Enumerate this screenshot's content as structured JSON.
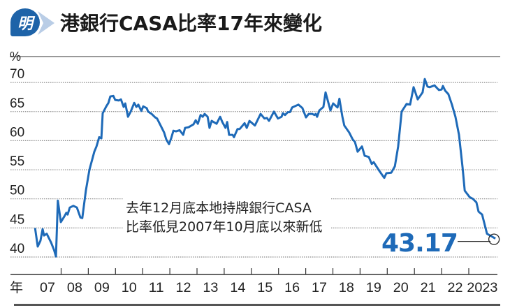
{
  "logo": {
    "text": "明",
    "color": "#1e63a8"
  },
  "title": "港銀行CASA比率17年來變化",
  "annotation": {
    "line1": "去年12月底本地持牌銀行CASA",
    "line2": "比率低見2007年10月底以來新低"
  },
  "latest_value": "43.17",
  "chart_data": {
    "type": "line",
    "title": "港銀行CASA比率17年來變化",
    "ylabel": "%",
    "xlabel": "年",
    "ylim": [
      40,
      70
    ],
    "xlim": [
      2007,
      2024
    ],
    "y_ticks": [
      "40",
      "45",
      "50",
      "55",
      "60",
      "65",
      "70"
    ],
    "x_tick_labels": [
      "07",
      "08",
      "09",
      "10",
      "11",
      "12",
      "13",
      "14",
      "15",
      "16",
      "17",
      "18",
      "19",
      "20",
      "21",
      "22",
      "2023"
    ],
    "grid": true,
    "line_color": "#1e6ab8",
    "series": [
      {
        "name": "CASA比率",
        "points": [
          [
            2007.04,
            45
          ],
          [
            2007.14,
            41.8
          ],
          [
            2007.24,
            42.8
          ],
          [
            2007.32,
            44.8
          ],
          [
            2007.37,
            43.7
          ],
          [
            2007.47,
            44
          ],
          [
            2007.63,
            42.5
          ],
          [
            2007.74,
            41.2
          ],
          [
            2007.81,
            40.1
          ],
          [
            2007.88,
            49.7
          ],
          [
            2007.99,
            46
          ],
          [
            2008.12,
            47
          ],
          [
            2008.19,
            47.6
          ],
          [
            2008.24,
            47.3
          ],
          [
            2008.32,
            48.5
          ],
          [
            2008.45,
            48.8
          ],
          [
            2008.58,
            48.5
          ],
          [
            2008.71,
            46.8
          ],
          [
            2008.78,
            46.7
          ],
          [
            2008.91,
            51.4
          ],
          [
            2009.04,
            55
          ],
          [
            2009.22,
            58.1
          ],
          [
            2009.3,
            59
          ],
          [
            2009.4,
            60.6
          ],
          [
            2009.48,
            60.4
          ],
          [
            2009.53,
            64.7
          ],
          [
            2009.66,
            65.9
          ],
          [
            2009.74,
            66.5
          ],
          [
            2009.81,
            67.6
          ],
          [
            2009.92,
            67.7
          ],
          [
            2009.99,
            67
          ],
          [
            2010.12,
            66.9
          ],
          [
            2010.2,
            67.1
          ],
          [
            2010.3,
            65.8
          ],
          [
            2010.36,
            66.4
          ],
          [
            2010.46,
            64.1
          ],
          [
            2010.56,
            65
          ],
          [
            2010.69,
            66.5
          ],
          [
            2010.77,
            65.8
          ],
          [
            2010.84,
            66.2
          ],
          [
            2010.95,
            65.1
          ],
          [
            2011.02,
            65.9
          ],
          [
            2011.15,
            65.6
          ],
          [
            2011.2,
            65
          ],
          [
            2011.33,
            64.6
          ],
          [
            2011.46,
            64
          ],
          [
            2011.53,
            63.8
          ],
          [
            2011.66,
            62.6
          ],
          [
            2011.79,
            61.4
          ],
          [
            2011.87,
            60.2
          ],
          [
            2011.97,
            59.4
          ],
          [
            2012.05,
            60.4
          ],
          [
            2012.13,
            61.7
          ],
          [
            2012.23,
            61.6
          ],
          [
            2012.36,
            61.8
          ],
          [
            2012.49,
            61
          ],
          [
            2012.56,
            62.2
          ],
          [
            2012.69,
            62.3
          ],
          [
            2012.87,
            62.8
          ],
          [
            2012.95,
            63.5
          ],
          [
            2013.03,
            62.9
          ],
          [
            2013.13,
            64.4
          ],
          [
            2013.21,
            64.1
          ],
          [
            2013.28,
            64.6
          ],
          [
            2013.39,
            64.1
          ],
          [
            2013.46,
            62.2
          ],
          [
            2013.54,
            63.4
          ],
          [
            2013.72,
            62.9
          ],
          [
            2013.85,
            64.1
          ],
          [
            2013.93,
            63.2
          ],
          [
            2014.05,
            62.2
          ],
          [
            2014.11,
            63.2
          ],
          [
            2014.18,
            61
          ],
          [
            2014.31,
            61
          ],
          [
            2014.36,
            60.6
          ],
          [
            2014.49,
            62
          ],
          [
            2014.57,
            62
          ],
          [
            2014.75,
            63
          ],
          [
            2014.83,
            62.2
          ],
          [
            2014.93,
            63.4
          ],
          [
            2015.13,
            62.6
          ],
          [
            2015.34,
            64.6
          ],
          [
            2015.48,
            63.8
          ],
          [
            2015.57,
            63.9
          ],
          [
            2015.65,
            63.4
          ],
          [
            2015.83,
            65
          ],
          [
            2015.98,
            63.8
          ],
          [
            2016.11,
            64.1
          ],
          [
            2016.16,
            64.7
          ],
          [
            2016.24,
            64.4
          ],
          [
            2016.34,
            64.9
          ],
          [
            2016.42,
            64.9
          ],
          [
            2016.5,
            65.7
          ],
          [
            2016.73,
            66.2
          ],
          [
            2016.88,
            65.6
          ],
          [
            2017.01,
            64
          ],
          [
            2017.11,
            64.6
          ],
          [
            2017.24,
            64.6
          ],
          [
            2017.32,
            64.4
          ],
          [
            2017.37,
            64.6
          ],
          [
            2017.42,
            64.1
          ],
          [
            2017.5,
            65.2
          ],
          [
            2017.65,
            65.8
          ],
          [
            2017.73,
            68.3
          ],
          [
            2017.91,
            65.2
          ],
          [
            2018.01,
            66.4
          ],
          [
            2018.17,
            65.7
          ],
          [
            2018.24,
            67.2
          ],
          [
            2018.35,
            64.1
          ],
          [
            2018.42,
            62.6
          ],
          [
            2018.6,
            61.4
          ],
          [
            2018.73,
            60.2
          ],
          [
            2018.81,
            59.8
          ],
          [
            2018.91,
            58.1
          ],
          [
            2019.07,
            59
          ],
          [
            2019.17,
            57.4
          ],
          [
            2019.32,
            57.2
          ],
          [
            2019.43,
            56
          ],
          [
            2019.5,
            56.3
          ],
          [
            2019.68,
            55
          ],
          [
            2019.89,
            53.6
          ],
          [
            2019.97,
            54.4
          ],
          [
            2020.15,
            54.5
          ],
          [
            2020.28,
            55.6
          ],
          [
            2020.4,
            59
          ],
          [
            2020.53,
            65
          ],
          [
            2020.71,
            66.3
          ],
          [
            2020.84,
            66.2
          ],
          [
            2020.97,
            69.2
          ],
          [
            2021.12,
            67.1
          ],
          [
            2021.3,
            68.3
          ],
          [
            2021.38,
            70.6
          ],
          [
            2021.48,
            69.3
          ],
          [
            2021.56,
            69.2
          ],
          [
            2021.74,
            69.5
          ],
          [
            2021.9,
            68.7
          ],
          [
            2022.0,
            68.8
          ],
          [
            2022.05,
            69.4
          ],
          [
            2022.13,
            68.6
          ],
          [
            2022.25,
            68
          ],
          [
            2022.38,
            66.2
          ],
          [
            2022.51,
            64.1
          ],
          [
            2022.64,
            61
          ],
          [
            2022.77,
            55.4
          ],
          [
            2022.85,
            51.4
          ],
          [
            2023.03,
            50.3
          ],
          [
            2023.15,
            50
          ],
          [
            2023.28,
            49.4
          ],
          [
            2023.36,
            47.8
          ],
          [
            2023.49,
            47.3
          ],
          [
            2023.67,
            44
          ],
          [
            2023.82,
            43.6
          ],
          [
            2023.98,
            43.17
          ]
        ]
      }
    ],
    "annotations": [
      {
        "label": "43.17",
        "point": [
          2023.98,
          43.17
        ],
        "marker": "circle"
      }
    ]
  }
}
